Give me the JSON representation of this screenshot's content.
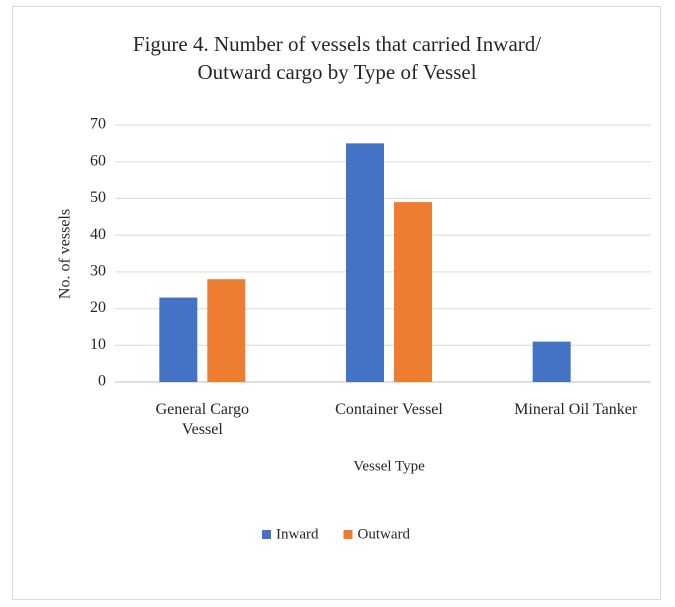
{
  "chart_data": {
    "type": "bar",
    "title": "Figure 4. Number of vessels that carried Inward/ Outward cargo by Type of Vessel",
    "x_label": "Vessel Type",
    "y_label": "No. of vessels",
    "categories": [
      "General Cargo Vessel",
      "Container Vessel",
      "Mineral Oil Tanker"
    ],
    "series": [
      {
        "name": "Inward",
        "color": "#4472c4",
        "values": [
          23,
          65,
          11
        ]
      },
      {
        "name": "Outward",
        "color": "#ed7d31",
        "values": [
          28,
          49,
          0
        ]
      }
    ],
    "ylim": [
      0,
      70
    ],
    "yticks": [
      0,
      10,
      20,
      30,
      40,
      50,
      60,
      70
    ],
    "grid": true,
    "legend": "bottom"
  }
}
